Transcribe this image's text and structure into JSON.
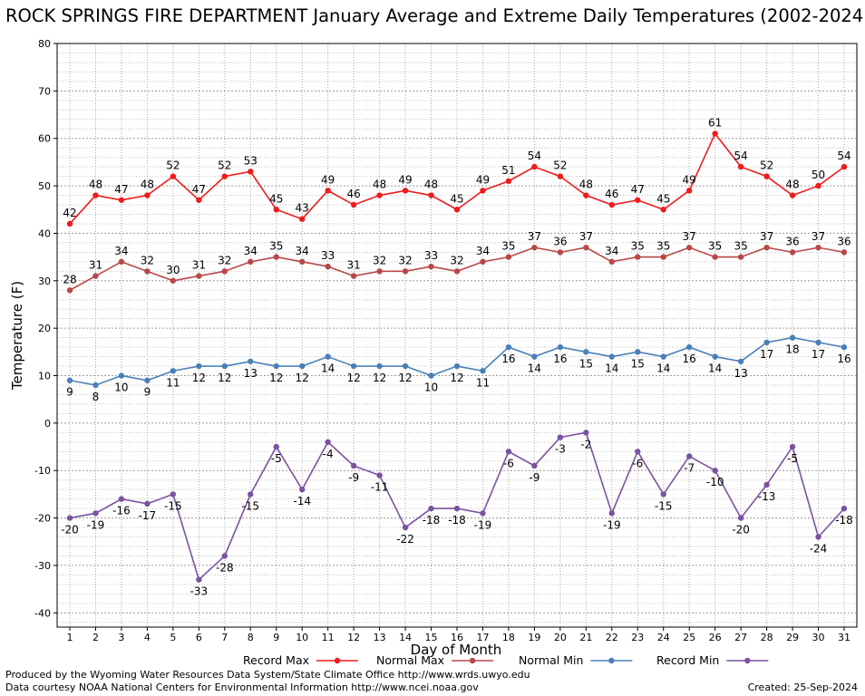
{
  "chart_data": {
    "type": "line",
    "title": "ROCK SPRINGS FIRE DEPARTMENT January Average and Extreme Daily Temperatures (2002-2024",
    "xlabel": "Day of Month",
    "ylabel": "Temperature (F)",
    "ylim": [
      -43,
      80
    ],
    "yticks": [
      -40,
      -30,
      -20,
      -10,
      0,
      10,
      20,
      30,
      40,
      50,
      60,
      70,
      80
    ],
    "x": [
      1,
      2,
      3,
      4,
      5,
      6,
      7,
      8,
      9,
      10,
      11,
      12,
      13,
      14,
      15,
      16,
      17,
      18,
      19,
      20,
      21,
      22,
      23,
      24,
      25,
      26,
      27,
      28,
      29,
      30,
      31
    ],
    "grid": true,
    "legend_placement": "bottom",
    "series": [
      {
        "name": "Record Max",
        "color": "#ee1c1c",
        "label_pos": "above",
        "values": [
          42,
          48,
          47,
          48,
          52,
          47,
          52,
          53,
          45,
          43,
          49,
          46,
          48,
          49,
          48,
          45,
          49,
          51,
          54,
          52,
          48,
          46,
          47,
          45,
          49,
          61,
          54,
          52,
          48,
          50,
          54
        ]
      },
      {
        "name": "Normal Max",
        "color": "#b84848",
        "label_pos": "above",
        "values": [
          28,
          31,
          34,
          32,
          30,
          31,
          32,
          34,
          35,
          34,
          33,
          31,
          32,
          32,
          33,
          32,
          34,
          35,
          37,
          36,
          37,
          34,
          35,
          35,
          37,
          35,
          35,
          37,
          36,
          37,
          36
        ]
      },
      {
        "name": "Normal Min",
        "color": "#4a80b8",
        "label_pos": "below",
        "values": [
          9,
          8,
          10,
          9,
          11,
          12,
          12,
          13,
          12,
          12,
          14,
          12,
          12,
          12,
          10,
          12,
          11,
          16,
          14,
          16,
          15,
          14,
          15,
          14,
          16,
          14,
          13,
          17,
          18,
          17,
          16
        ]
      },
      {
        "name": "Record Min",
        "color": "#7a52a2",
        "label_pos": "below",
        "values": [
          -20,
          -19,
          -16,
          -17,
          -15,
          -33,
          -28,
          -15,
          -5,
          -14,
          -4,
          -9,
          -11,
          -22,
          -18,
          -18,
          -19,
          -6,
          -9,
          -3,
          -2,
          -19,
          -6,
          -15,
          -7,
          -10,
          -20,
          -13,
          -5,
          -24,
          -18
        ]
      }
    ]
  },
  "footer": {
    "produced_by": "Produced by the Wyoming Water Resources Data System/State Climate Office http://www.wrds.uwyo.edu",
    "courtesy": "Data courtesy NOAA National Centers for Environmental Information http://www.ncei.noaa.gov",
    "created": "Created:  25-Sep-2024"
  }
}
